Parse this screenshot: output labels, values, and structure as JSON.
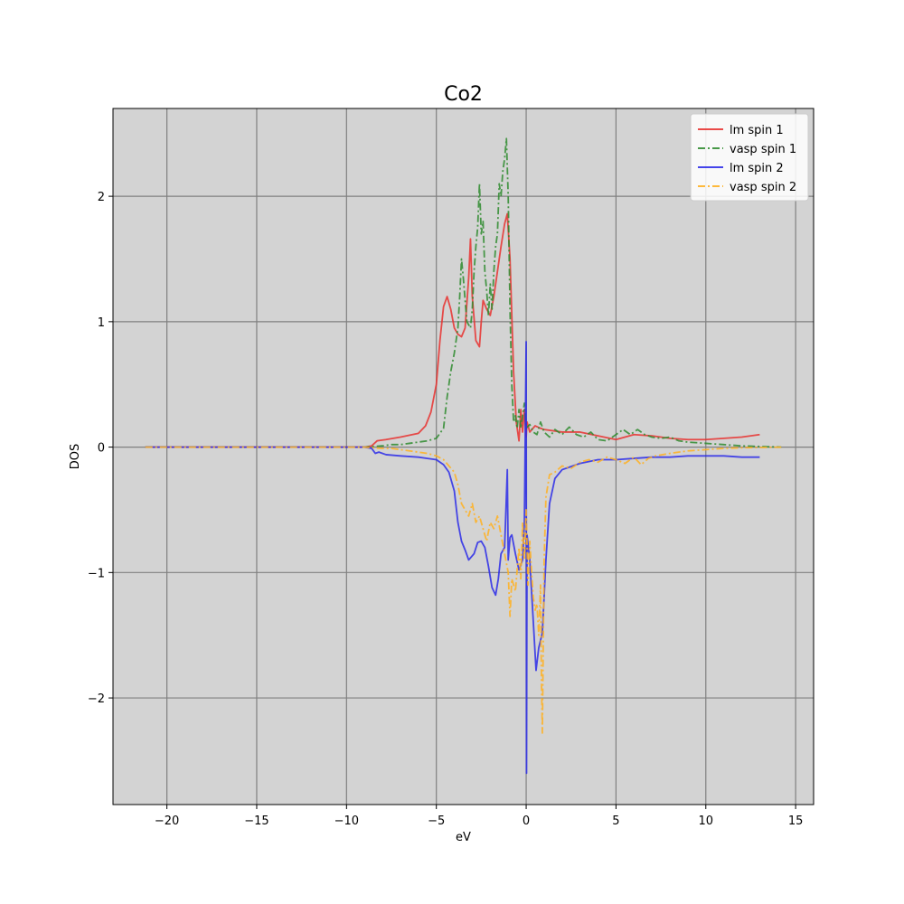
{
  "chart_data": {
    "type": "line",
    "title": "Co2",
    "xlabel": "eV",
    "ylabel": "DOS",
    "xlim": [
      -23,
      16
    ],
    "ylim": [
      -2.85,
      2.7
    ],
    "xticks": [
      -20,
      -15,
      -10,
      -5,
      0,
      5,
      10,
      15
    ],
    "xtick_labels": [
      "−20",
      "−15",
      "−10",
      "−5",
      "0",
      "5",
      "10",
      "15"
    ],
    "yticks": [
      -2,
      -1,
      0,
      1,
      2
    ],
    "ytick_labels": [
      "−2",
      "−1",
      "0",
      "1",
      "2"
    ],
    "grid": true,
    "background": "#d3d3d3",
    "grid_color": "#808080",
    "legend_position": "top-right",
    "series": [
      {
        "name": "lm spin 1",
        "color": "#e8302e",
        "style": "solid",
        "points": [
          [
            -21.2,
            0
          ],
          [
            -12,
            0
          ],
          [
            -9,
            0
          ],
          [
            -8.6,
            0.01
          ],
          [
            -8.3,
            0.05
          ],
          [
            -7.8,
            0.06
          ],
          [
            -7,
            0.08
          ],
          [
            -6,
            0.11
          ],
          [
            -5.6,
            0.17
          ],
          [
            -5.3,
            0.28
          ],
          [
            -5,
            0.5
          ],
          [
            -4.8,
            0.85
          ],
          [
            -4.6,
            1.12
          ],
          [
            -4.4,
            1.2
          ],
          [
            -4.2,
            1.1
          ],
          [
            -4.0,
            0.95
          ],
          [
            -3.8,
            0.9
          ],
          [
            -3.6,
            0.88
          ],
          [
            -3.4,
            0.95
          ],
          [
            -3.2,
            1.35
          ],
          [
            -3.1,
            1.66
          ],
          [
            -3.0,
            1.2
          ],
          [
            -2.8,
            0.85
          ],
          [
            -2.6,
            0.8
          ],
          [
            -2.5,
            1.0
          ],
          [
            -2.4,
            1.17
          ],
          [
            -2.2,
            1.1
          ],
          [
            -2.0,
            1.05
          ],
          [
            -1.8,
            1.2
          ],
          [
            -1.6,
            1.4
          ],
          [
            -1.4,
            1.6
          ],
          [
            -1.2,
            1.78
          ],
          [
            -1.05,
            1.86
          ],
          [
            -0.9,
            1.5
          ],
          [
            -0.7,
            0.6
          ],
          [
            -0.55,
            0.2
          ],
          [
            -0.4,
            0.05
          ],
          [
            -0.3,
            0.3
          ],
          [
            -0.2,
            0.12
          ],
          [
            -0.1,
            0.3
          ],
          [
            0.0,
            0.08
          ],
          [
            0.05,
            0.2
          ],
          [
            0.2,
            0.12
          ],
          [
            0.5,
            0.17
          ],
          [
            0.8,
            0.15
          ],
          [
            1,
            0.14
          ],
          [
            2,
            0.12
          ],
          [
            3,
            0.12
          ],
          [
            4,
            0.09
          ],
          [
            5,
            0.06
          ],
          [
            5.5,
            0.08
          ],
          [
            6,
            0.1
          ],
          [
            7,
            0.09
          ],
          [
            8,
            0.07
          ],
          [
            9,
            0.06
          ],
          [
            10,
            0.06
          ],
          [
            11,
            0.07
          ],
          [
            12,
            0.08
          ],
          [
            13,
            0.1
          ]
        ]
      },
      {
        "name": "vasp spin 1",
        "color": "#2e8b2e",
        "style": "dashdot",
        "points": [
          [
            -21.2,
            0
          ],
          [
            -10,
            0
          ],
          [
            -9,
            0
          ],
          [
            -8.5,
            0.005
          ],
          [
            -8,
            0.01
          ],
          [
            -7.5,
            0.02
          ],
          [
            -7,
            0.02
          ],
          [
            -6.5,
            0.03
          ],
          [
            -6,
            0.04
          ],
          [
            -5.5,
            0.05
          ],
          [
            -5,
            0.07
          ],
          [
            -4.6,
            0.15
          ],
          [
            -4.4,
            0.4
          ],
          [
            -4.2,
            0.6
          ],
          [
            -4.0,
            0.75
          ],
          [
            -3.8,
            0.95
          ],
          [
            -3.7,
            1.2
          ],
          [
            -3.6,
            1.5
          ],
          [
            -3.5,
            1.35
          ],
          [
            -3.3,
            1.0
          ],
          [
            -3.1,
            0.95
          ],
          [
            -3.0,
            1.1
          ],
          [
            -2.9,
            1.4
          ],
          [
            -2.8,
            1.6
          ],
          [
            -2.7,
            1.75
          ],
          [
            -2.6,
            2.1
          ],
          [
            -2.5,
            1.7
          ],
          [
            -2.4,
            1.8
          ],
          [
            -2.3,
            1.4
          ],
          [
            -2.2,
            1.25
          ],
          [
            -2.1,
            1.05
          ],
          [
            -2.0,
            1.3
          ],
          [
            -1.9,
            1.1
          ],
          [
            -1.8,
            1.4
          ],
          [
            -1.7,
            1.6
          ],
          [
            -1.6,
            1.7
          ],
          [
            -1.5,
            2.1
          ],
          [
            -1.4,
            2.0
          ],
          [
            -1.3,
            2.2
          ],
          [
            -1.2,
            2.3
          ],
          [
            -1.1,
            2.46
          ],
          [
            -1.0,
            2.0
          ],
          [
            -0.9,
            1.1
          ],
          [
            -0.8,
            0.5
          ],
          [
            -0.7,
            0.2
          ],
          [
            -0.6,
            0.25
          ],
          [
            -0.5,
            0.15
          ],
          [
            -0.4,
            0.3
          ],
          [
            -0.3,
            0.15
          ],
          [
            -0.2,
            0.25
          ],
          [
            -0.1,
            0.35
          ],
          [
            0,
            0.15
          ],
          [
            0.2,
            0.18
          ],
          [
            0.4,
            0.12
          ],
          [
            0.6,
            0.1
          ],
          [
            0.8,
            0.2
          ],
          [
            1,
            0.12
          ],
          [
            1.3,
            0.08
          ],
          [
            1.6,
            0.14
          ],
          [
            2,
            0.1
          ],
          [
            2.4,
            0.16
          ],
          [
            2.8,
            0.1
          ],
          [
            3.2,
            0.08
          ],
          [
            3.6,
            0.12
          ],
          [
            4,
            0.06
          ],
          [
            4.5,
            0.05
          ],
          [
            5,
            0.1
          ],
          [
            5.4,
            0.14
          ],
          [
            5.8,
            0.1
          ],
          [
            6.2,
            0.14
          ],
          [
            6.6,
            0.1
          ],
          [
            7,
            0.08
          ],
          [
            7.5,
            0.07
          ],
          [
            8,
            0.08
          ],
          [
            8.5,
            0.05
          ],
          [
            9,
            0.04
          ],
          [
            10,
            0.03
          ],
          [
            11,
            0.02
          ],
          [
            12,
            0.01
          ],
          [
            13,
            0.005
          ],
          [
            14.2,
            0
          ]
        ]
      },
      {
        "name": "lm spin 2",
        "color": "#2a2ae8",
        "style": "solid",
        "points": [
          [
            -21.2,
            0
          ],
          [
            -12,
            0
          ],
          [
            -9,
            0
          ],
          [
            -8.6,
            -0.01
          ],
          [
            -8.4,
            -0.05
          ],
          [
            -8.2,
            -0.04
          ],
          [
            -7.8,
            -0.06
          ],
          [
            -7,
            -0.07
          ],
          [
            -6,
            -0.08
          ],
          [
            -5.5,
            -0.09
          ],
          [
            -5,
            -0.1
          ],
          [
            -4.6,
            -0.14
          ],
          [
            -4.3,
            -0.2
          ],
          [
            -4.0,
            -0.35
          ],
          [
            -3.8,
            -0.6
          ],
          [
            -3.6,
            -0.75
          ],
          [
            -3.4,
            -0.82
          ],
          [
            -3.2,
            -0.9
          ],
          [
            -2.9,
            -0.85
          ],
          [
            -2.7,
            -0.76
          ],
          [
            -2.5,
            -0.75
          ],
          [
            -2.3,
            -0.8
          ],
          [
            -2.1,
            -0.95
          ],
          [
            -1.9,
            -1.12
          ],
          [
            -1.7,
            -1.18
          ],
          [
            -1.55,
            -1.05
          ],
          [
            -1.4,
            -0.85
          ],
          [
            -1.2,
            -0.8
          ],
          [
            -1.05,
            -0.18
          ],
          [
            -1.0,
            -0.9
          ],
          [
            -0.9,
            -0.72
          ],
          [
            -0.8,
            -0.7
          ],
          [
            -0.6,
            -0.85
          ],
          [
            -0.4,
            -0.98
          ],
          [
            -0.2,
            -0.9
          ],
          [
            -0.1,
            -0.6
          ],
          [
            0,
            0.84
          ],
          [
            0.02,
            -2.6
          ],
          [
            0.05,
            -0.7
          ],
          [
            0.2,
            -0.9
          ],
          [
            0.4,
            -1.4
          ],
          [
            0.55,
            -1.78
          ],
          [
            0.7,
            -1.6
          ],
          [
            0.9,
            -1.48
          ],
          [
            1.1,
            -0.9
          ],
          [
            1.3,
            -0.45
          ],
          [
            1.6,
            -0.25
          ],
          [
            2,
            -0.18
          ],
          [
            3,
            -0.13
          ],
          [
            4,
            -0.1
          ],
          [
            5,
            -0.1
          ],
          [
            6,
            -0.09
          ],
          [
            7,
            -0.08
          ],
          [
            8,
            -0.08
          ],
          [
            9,
            -0.07
          ],
          [
            10,
            -0.07
          ],
          [
            11,
            -0.07
          ],
          [
            12,
            -0.08
          ],
          [
            13,
            -0.08
          ]
        ]
      },
      {
        "name": "vasp spin 2",
        "color": "#ffb020",
        "style": "dashdot",
        "points": [
          [
            -21.2,
            0
          ],
          [
            -10,
            0
          ],
          [
            -9,
            0
          ],
          [
            -8.5,
            -0.005
          ],
          [
            -8,
            -0.01
          ],
          [
            -7.5,
            -0.01
          ],
          [
            -7,
            -0.02
          ],
          [
            -6.5,
            -0.03
          ],
          [
            -6,
            -0.04
          ],
          [
            -5.5,
            -0.05
          ],
          [
            -5,
            -0.07
          ],
          [
            -4.6,
            -0.1
          ],
          [
            -4.3,
            -0.15
          ],
          [
            -4.0,
            -0.2
          ],
          [
            -3.8,
            -0.3
          ],
          [
            -3.6,
            -0.45
          ],
          [
            -3.4,
            -0.5
          ],
          [
            -3.2,
            -0.55
          ],
          [
            -3.0,
            -0.45
          ],
          [
            -2.8,
            -0.6
          ],
          [
            -2.6,
            -0.55
          ],
          [
            -2.4,
            -0.65
          ],
          [
            -2.2,
            -0.75
          ],
          [
            -2.0,
            -0.6
          ],
          [
            -1.8,
            -0.65
          ],
          [
            -1.6,
            -0.55
          ],
          [
            -1.4,
            -0.7
          ],
          [
            -1.2,
            -0.85
          ],
          [
            -1.0,
            -1.0
          ],
          [
            -0.9,
            -1.35
          ],
          [
            -0.8,
            -1.05
          ],
          [
            -0.6,
            -1.15
          ],
          [
            -0.4,
            -0.8
          ],
          [
            -0.3,
            -1.05
          ],
          [
            -0.2,
            -0.6
          ],
          [
            -0.1,
            -0.9
          ],
          [
            0,
            -0.5
          ],
          [
            0.1,
            -1.1
          ],
          [
            0.2,
            -0.75
          ],
          [
            0.3,
            -1.0
          ],
          [
            0.4,
            -1.2
          ],
          [
            0.5,
            -1.3
          ],
          [
            0.6,
            -1.25
          ],
          [
            0.7,
            -1.5
          ],
          [
            0.8,
            -1.1
          ],
          [
            0.85,
            -1.85
          ],
          [
            0.9,
            -2.28
          ],
          [
            1.0,
            -0.9
          ],
          [
            1.1,
            -0.4
          ],
          [
            1.3,
            -0.22
          ],
          [
            1.6,
            -0.2
          ],
          [
            2,
            -0.15
          ],
          [
            2.5,
            -0.17
          ],
          [
            3,
            -0.12
          ],
          [
            3.5,
            -0.1
          ],
          [
            4,
            -0.12
          ],
          [
            4.5,
            -0.08
          ],
          [
            5,
            -0.1
          ],
          [
            5.5,
            -0.13
          ],
          [
            6,
            -0.08
          ],
          [
            6.4,
            -0.14
          ],
          [
            6.8,
            -0.09
          ],
          [
            7.2,
            -0.07
          ],
          [
            8,
            -0.05
          ],
          [
            9,
            -0.03
          ],
          [
            10,
            -0.02
          ],
          [
            11,
            -0.01
          ],
          [
            12,
            -0.005
          ],
          [
            14.2,
            0
          ]
        ]
      }
    ]
  }
}
